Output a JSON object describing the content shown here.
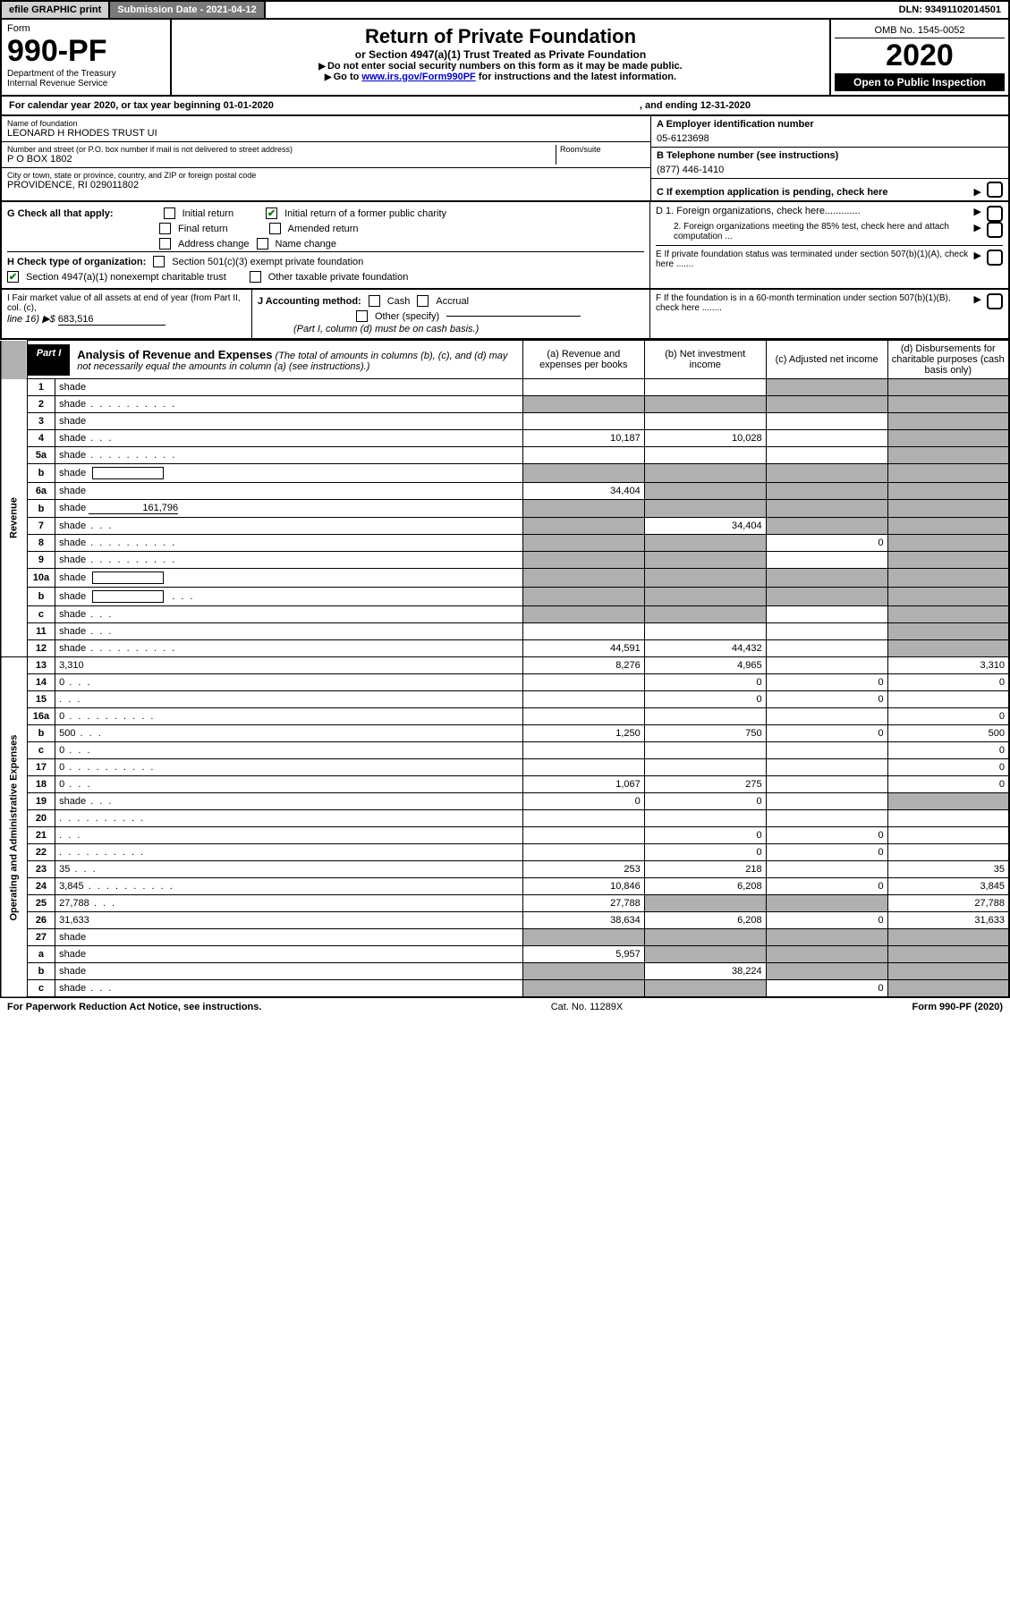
{
  "topbar": {
    "efile": "efile GRAPHIC print",
    "submission": "Submission Date - 2021-04-12",
    "dln": "DLN: 93491102014501"
  },
  "header": {
    "form_word": "Form",
    "form_no": "990-PF",
    "dept": "Department of the Treasury",
    "irs": "Internal Revenue Service",
    "title": "Return of Private Foundation",
    "subtitle": "or Section 4947(a)(1) Trust Treated as Private Foundation",
    "instr1": "Do not enter social security numbers on this form as it may be made public.",
    "instr2_pre": "Go to ",
    "instr2_link": "www.irs.gov/Form990PF",
    "instr2_post": " for instructions and the latest information.",
    "omb": "OMB No. 1545-0052",
    "year": "2020",
    "open": "Open to Public Inspection"
  },
  "calyear": {
    "left": "For calendar year 2020, or tax year beginning 01-01-2020",
    "right": ", and ending 12-31-2020"
  },
  "ident": {
    "name_label": "Name of foundation",
    "name": "LEONARD H RHODES TRUST UI",
    "addr_label": "Number and street (or P.O. box number if mail is not delivered to street address)",
    "addr": "P O BOX 1802",
    "room_label": "Room/suite",
    "city_label": "City or town, state or province, country, and ZIP or foreign postal code",
    "city": "PROVIDENCE, RI  029011802",
    "a_label": "A Employer identification number",
    "a_val": "05-6123698",
    "b_label": "B Telephone number (see instructions)",
    "b_val": "(877) 446-1410",
    "c_label": "C If exemption application is pending, check here",
    "d1": "D 1. Foreign organizations, check here.............",
    "d2": "2. Foreign organizations meeting the 85% test, check here and attach computation ...",
    "e_label": "E   If private foundation status was terminated under section 507(b)(1)(A), check here .......",
    "f_label": "F   If the foundation is in a 60-month termination under section 507(b)(1)(B), check here ........"
  },
  "g": {
    "label": "G Check all that apply:",
    "initial": "Initial return",
    "initial_former": "Initial return of a former public charity",
    "final": "Final return",
    "amended": "Amended return",
    "addr_change": "Address change",
    "name_change": "Name change"
  },
  "h": {
    "label": "H Check type of organization:",
    "s501": "Section 501(c)(3) exempt private foundation",
    "s4947": "Section 4947(a)(1) nonexempt charitable trust",
    "other": "Other taxable private foundation"
  },
  "i": {
    "label": "I Fair market value of all assets at end of year (from Part II, col. (c),",
    "line": "line 16) ▶$",
    "val": "683,516"
  },
  "j": {
    "label": "J Accounting method:",
    "cash": "Cash",
    "accrual": "Accrual",
    "other_label": "Other (specify)",
    "note": "(Part I, column (d) must be on cash basis.)"
  },
  "part1": {
    "badge": "Part I",
    "title": "Analysis of Revenue and Expenses",
    "title_note": "(The total of amounts in columns (b), (c), and (d) may not necessarily equal the amounts in column (a) (see instructions).)",
    "col_a": "(a)   Revenue and expenses per books",
    "col_b": "(b)  Net investment income",
    "col_c": "(c)  Adjusted net income",
    "col_d": "(d)  Disbursements for charitable purposes (cash basis only)"
  },
  "sides": {
    "revenue": "Revenue",
    "expenses": "Operating and Administrative Expenses"
  },
  "rows": [
    {
      "n": "1",
      "d": "shade",
      "a": "",
      "b": "",
      "c": "shade"
    },
    {
      "n": "2",
      "d": "shade",
      "dots": true,
      "a": "shade",
      "b": "shade",
      "c": "shade"
    },
    {
      "n": "3",
      "d": "shade",
      "a": "",
      "b": "",
      "c": ""
    },
    {
      "n": "4",
      "d": "shade",
      "dots": "s",
      "a": "10,187",
      "b": "10,028",
      "c": ""
    },
    {
      "n": "5a",
      "d": "shade",
      "dots": true,
      "a": "",
      "b": "",
      "c": ""
    },
    {
      "n": "b",
      "d": "shade",
      "box": true,
      "a": "shade",
      "b": "shade",
      "c": "shade"
    },
    {
      "n": "6a",
      "d": "shade",
      "a": "34,404",
      "b": "shade",
      "c": "shade"
    },
    {
      "n": "b",
      "d": "shade",
      "uline": "161,796",
      "a": "shade",
      "b": "shade",
      "c": "shade"
    },
    {
      "n": "7",
      "d": "shade",
      "dots": "s",
      "a": "shade",
      "b": "34,404",
      "c": "shade"
    },
    {
      "n": "8",
      "d": "shade",
      "dots": true,
      "a": "shade",
      "b": "shade",
      "c": "0"
    },
    {
      "n": "9",
      "d": "shade",
      "dots": true,
      "a": "shade",
      "b": "shade",
      "c": ""
    },
    {
      "n": "10a",
      "d": "shade",
      "box": true,
      "a": "shade",
      "b": "shade",
      "c": "shade"
    },
    {
      "n": "b",
      "d": "shade",
      "dots": "s",
      "box": true,
      "a": "shade",
      "b": "shade",
      "c": "shade"
    },
    {
      "n": "c",
      "d": "shade",
      "dots": "s",
      "a": "shade",
      "b": "shade",
      "c": ""
    },
    {
      "n": "11",
      "d": "shade",
      "dots": "s",
      "a": "",
      "b": "",
      "c": ""
    },
    {
      "n": "12",
      "d": "shade",
      "dots": true,
      "a": "44,591",
      "b": "44,432",
      "c": ""
    },
    {
      "n": "13",
      "d": "3,310",
      "a": "8,276",
      "b": "4,965",
      "c": ""
    },
    {
      "n": "14",
      "d": "0",
      "dots": "s",
      "a": "",
      "b": "0",
      "c": "0"
    },
    {
      "n": "15",
      "d": "",
      "dots": "s",
      "a": "",
      "b": "0",
      "c": "0"
    },
    {
      "n": "16a",
      "d": "0",
      "dots": true,
      "a": "",
      "b": "",
      "c": ""
    },
    {
      "n": "b",
      "d": "500",
      "dots": "s",
      "a": "1,250",
      "b": "750",
      "c": "0"
    },
    {
      "n": "c",
      "d": "0",
      "dots": "s",
      "a": "",
      "b": "",
      "c": ""
    },
    {
      "n": "17",
      "d": "0",
      "dots": true,
      "a": "",
      "b": "",
      "c": ""
    },
    {
      "n": "18",
      "d": "0",
      "dots": "s",
      "a": "1,067",
      "b": "275",
      "c": ""
    },
    {
      "n": "19",
      "d": "shade",
      "dots": "s",
      "a": "0",
      "b": "0",
      "c": ""
    },
    {
      "n": "20",
      "d": "",
      "dots": true,
      "a": "",
      "b": "",
      "c": ""
    },
    {
      "n": "21",
      "d": "",
      "dots": "s",
      "a": "",
      "b": "0",
      "c": "0"
    },
    {
      "n": "22",
      "d": "",
      "dots": true,
      "a": "",
      "b": "0",
      "c": "0"
    },
    {
      "n": "23",
      "d": "35",
      "dots": "s",
      "a": "253",
      "b": "218",
      "c": ""
    },
    {
      "n": "24",
      "d": "3,845",
      "dots": true,
      "a": "10,846",
      "b": "6,208",
      "c": "0"
    },
    {
      "n": "25",
      "d": "27,788",
      "dots": "s",
      "a": "27,788",
      "b": "shade",
      "c": "shade"
    },
    {
      "n": "26",
      "d": "31,633",
      "a": "38,634",
      "b": "6,208",
      "c": "0"
    },
    {
      "n": "27",
      "d": "shade",
      "a": "shade",
      "b": "shade",
      "c": "shade"
    },
    {
      "n": "a",
      "d": "shade",
      "a": "5,957",
      "b": "shade",
      "c": "shade"
    },
    {
      "n": "b",
      "d": "shade",
      "a": "shade",
      "b": "38,224",
      "c": "shade"
    },
    {
      "n": "c",
      "d": "shade",
      "dots": "s",
      "a": "shade",
      "b": "shade",
      "c": "0"
    }
  ],
  "footer": {
    "left": "For Paperwork Reduction Act Notice, see instructions.",
    "mid": "Cat. No. 11289X",
    "right": "Form 990-PF (2020)"
  }
}
